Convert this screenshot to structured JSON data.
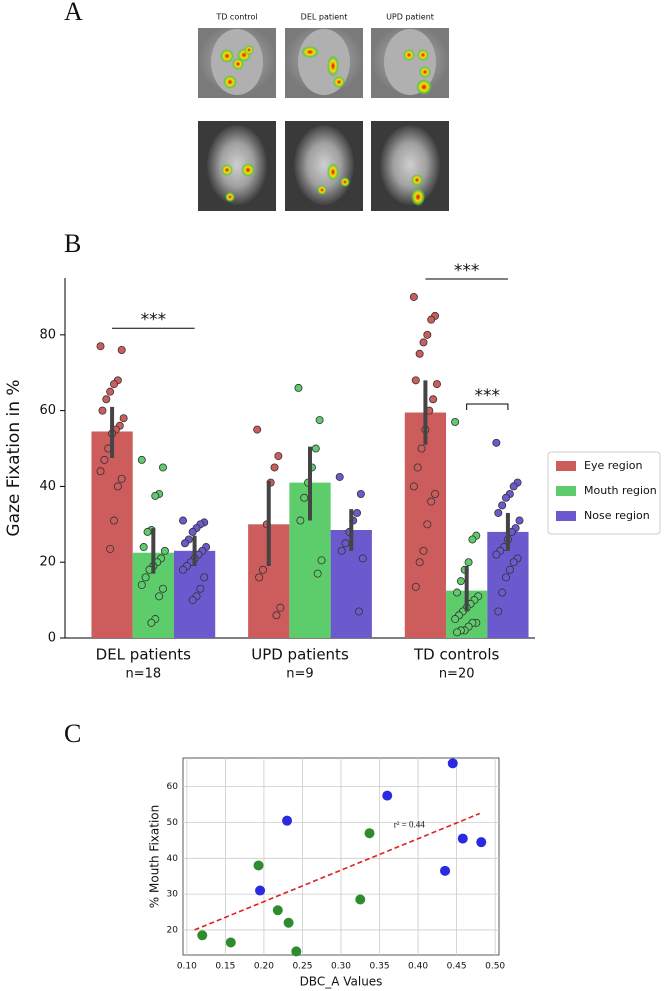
{
  "panel_a": {
    "label": "A",
    "columns": [
      "TD control",
      "DEL patient",
      "UPD patient"
    ]
  },
  "chart_data": [
    {
      "type": "bar",
      "panel_label": "B",
      "y_label": "Gaze Fixation in %",
      "categories": [
        "DEL patients",
        "UPD patients",
        "TD controls"
      ],
      "category_notes": [
        "n=18",
        "n=9",
        "n=20"
      ],
      "ylim": [
        0,
        95
      ],
      "yticks": [
        0,
        20,
        40,
        60,
        80
      ],
      "legend": "right",
      "series": [
        {
          "name": "Eye region",
          "color": "#cd5c5c",
          "values": [
            54.5,
            30,
            59.5
          ],
          "ci": [
            [
              47.5,
              61
            ],
            [
              19,
              41.5
            ],
            [
              51,
              68
            ]
          ],
          "points": [
            [
              77,
              76,
              68,
              67,
              65,
              63,
              60,
              58,
              56,
              55,
              54,
              50,
              47,
              44,
              42,
              40,
              31,
              23.5
            ],
            [
              55,
              48,
              45,
              41,
              30,
              18,
              16,
              8,
              6
            ],
            [
              90,
              85,
              84,
              80,
              78,
              75,
              68,
              67,
              63,
              60,
              55,
              50,
              45,
              40,
              38,
              36,
              30,
              23,
              20,
              13.5
            ]
          ]
        },
        {
          "name": "Mouth region",
          "color": "#5dcc6a",
          "values": [
            22.5,
            41,
            12.5
          ],
          "ci": [
            [
              17,
              29
            ],
            [
              31,
              50.5
            ],
            [
              7,
              19
            ]
          ],
          "points": [
            [
              47,
              45,
              38,
              37.5,
              28.5,
              28,
              24,
              23,
              21,
              20,
              19,
              18,
              16,
              14,
              13,
              11,
              5,
              4
            ],
            [
              66,
              57.5,
              50,
              45,
              41,
              37,
              31,
              20.5,
              17
            ],
            [
              57,
              27,
              26,
              20,
              18,
              15,
              12,
              11,
              10,
              9,
              8,
              7,
              6,
              5,
              4,
              4,
              3,
              2,
              2,
              1.5
            ]
          ]
        },
        {
          "name": "Nose region",
          "color": "#6a5acd",
          "values": [
            23,
            28.5,
            28
          ],
          "ci": [
            [
              19,
              27
            ],
            [
              23,
              34
            ],
            [
              23,
              33
            ]
          ],
          "points": [
            [
              31,
              30.5,
              30,
              29,
              28,
              26,
              25,
              24,
              23,
              22,
              21,
              20,
              19,
              18,
              16,
              13,
              11,
              10
            ],
            [
              42.5,
              38,
              33,
              31,
              28,
              25,
              23,
              21,
              7
            ],
            [
              51.5,
              41,
              40,
              38,
              37,
              35,
              33,
              31,
              29,
              28,
              26,
              24,
              23,
              22,
              21,
              20,
              18,
              16,
              12,
              7
            ]
          ]
        }
      ],
      "significance": [
        {
          "label": "***",
          "category": 0,
          "series": [
            0,
            2
          ]
        },
        {
          "label": "***",
          "category": 2,
          "series": [
            0,
            2
          ]
        },
        {
          "label": "***",
          "category": 2,
          "series": [
            1,
            2
          ]
        }
      ]
    },
    {
      "type": "scatter",
      "panel_label": "C",
      "x_label": "DBC_A Values",
      "y_label": "% Mouth Fixation",
      "xlim": [
        0.095,
        0.505
      ],
      "xticks": [
        {
          "value": 0.1,
          "label": "0.10"
        },
        0.15,
        {
          "value": 0.2,
          "label": "0.20"
        },
        0.25,
        {
          "value": 0.3,
          "label": "0.30"
        },
        0.35,
        {
          "value": 0.4,
          "label": "0.40"
        },
        0.45,
        {
          "value": 0.5,
          "label": "0.50"
        }
      ],
      "ylim": [
        13,
        68
      ],
      "yticks": [
        20,
        30,
        40,
        50,
        60
      ],
      "grid": true,
      "series": [
        {
          "color": "#2a2ae0",
          "x": [
            0.195,
            0.23,
            0.36,
            0.435,
            0.445,
            0.458,
            0.482
          ],
          "y": [
            31,
            50.5,
            57.5,
            36.5,
            66.5,
            45.5,
            44.5
          ]
        },
        {
          "color": "#2e8b2e",
          "x": [
            0.12,
            0.157,
            0.193,
            0.218,
            0.232,
            0.242,
            0.325,
            0.337
          ],
          "y": [
            18.5,
            16.5,
            38,
            25.5,
            22,
            14,
            28.5,
            47
          ]
        }
      ],
      "trendline": {
        "x": [
          0.11,
          0.48
        ],
        "y": [
          20,
          52.5
        ],
        "color": "#e02020",
        "label": "r² = 0.44"
      }
    }
  ]
}
